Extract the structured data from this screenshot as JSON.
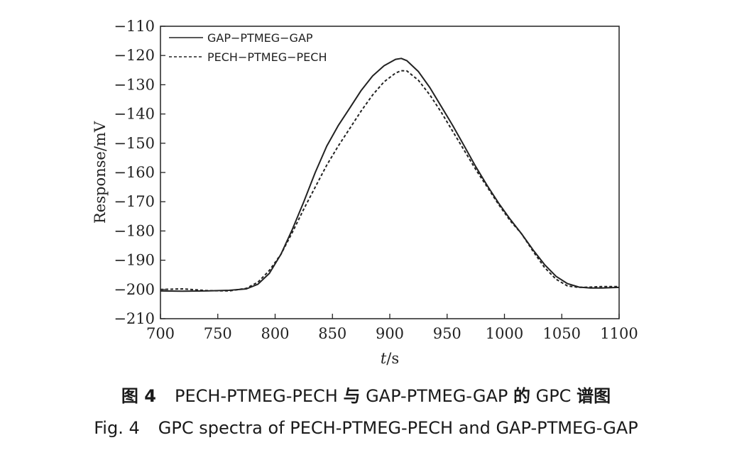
{
  "chart_data": {
    "type": "line",
    "xlabel_italic": "t",
    "xlabel_unit": "/s",
    "ylabel": "Response/mV",
    "xlim": [
      700,
      1100
    ],
    "ylim": [
      -210,
      -110
    ],
    "xticks": [
      700,
      750,
      800,
      850,
      900,
      950,
      1000,
      1050,
      1100
    ],
    "yticks": [
      -110,
      -120,
      -130,
      -140,
      -150,
      -160,
      -170,
      -180,
      -190,
      -200,
      -210
    ],
    "grid": false,
    "legend_position": "top-left",
    "series": [
      {
        "name": "GAP−PTMEG−GAP",
        "style": "solid",
        "color": "#222222",
        "x": [
          700,
          720,
          740,
          760,
          775,
          785,
          795,
          805,
          815,
          825,
          835,
          845,
          855,
          865,
          875,
          885,
          895,
          905,
          910,
          915,
          925,
          935,
          945,
          955,
          965,
          975,
          985,
          995,
          1005,
          1015,
          1025,
          1035,
          1045,
          1055,
          1065,
          1075,
          1085,
          1100
        ],
        "y": [
          -200.5,
          -200.6,
          -200.5,
          -200.3,
          -199.8,
          -198.2,
          -194.5,
          -188,
          -179.5,
          -170,
          -160,
          -151,
          -144,
          -138,
          -132,
          -127,
          -123.5,
          -121.3,
          -121,
          -121.8,
          -125.5,
          -131,
          -137.5,
          -144,
          -151,
          -158,
          -164.5,
          -170.5,
          -176,
          -181,
          -186.5,
          -191.5,
          -195.5,
          -198,
          -199.2,
          -199.5,
          -199.5,
          -199.3
        ]
      },
      {
        "name": "PECH−PTMEG−PECH",
        "style": "dashed",
        "color": "#222222",
        "x": [
          700,
          720,
          740,
          760,
          775,
          785,
          795,
          805,
          815,
          825,
          835,
          845,
          855,
          865,
          875,
          885,
          895,
          905,
          910,
          915,
          925,
          935,
          945,
          955,
          965,
          975,
          985,
          995,
          1005,
          1015,
          1025,
          1035,
          1045,
          1055,
          1065,
          1075,
          1085,
          1100
        ],
        "y": [
          -200,
          -199.8,
          -200.4,
          -200.5,
          -199.6,
          -197.5,
          -193.5,
          -188,
          -180.5,
          -172.5,
          -165,
          -157.5,
          -151,
          -145,
          -139,
          -133.5,
          -129,
          -126,
          -125.2,
          -125.3,
          -128.5,
          -133.5,
          -139.5,
          -146,
          -152.5,
          -159,
          -165,
          -171,
          -176.5,
          -181,
          -187,
          -192.5,
          -196.5,
          -198.8,
          -199.3,
          -199.2,
          -199,
          -199
        ]
      }
    ]
  },
  "caption": {
    "cn_label": "图 4",
    "cn_part1": "PECH-PTMEG-PECH",
    "cn_conj": "与",
    "cn_part2": "GAP-PTMEG-GAP",
    "cn_de": "的",
    "cn_part3": "GPC",
    "cn_end": "谱图",
    "en_label": "Fig. 4",
    "en_text": "GPC spectra of PECH-PTMEG-PECH and GAP-PTMEG-GAP"
  }
}
